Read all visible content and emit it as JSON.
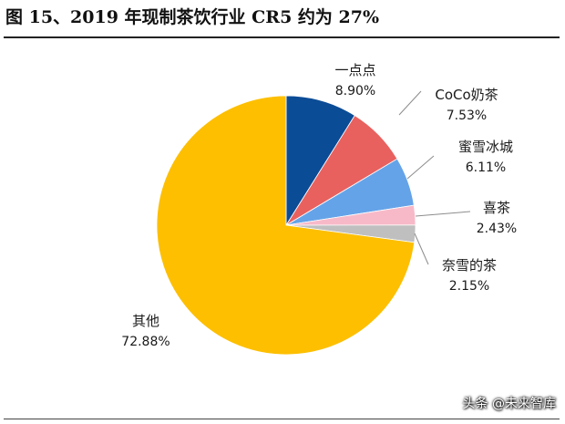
{
  "figure_title": "图 15、2019 年现制茶饮行业 CR5 约为 27%",
  "watermark": "头条 @未来智库",
  "chart_data": {
    "type": "pie",
    "title": "",
    "slices": [
      {
        "label": "一点点",
        "value": 8.9,
        "display": "8.90%",
        "color": "#0b4c96"
      },
      {
        "label": "CoCo奶茶",
        "value": 7.53,
        "display": "7.53%",
        "color": "#e8615f"
      },
      {
        "label": "蜜雪冰城",
        "value": 6.11,
        "display": "6.11%",
        "color": "#65a3e8"
      },
      {
        "label": "喜茶",
        "value": 2.43,
        "display": "2.43%",
        "color": "#f7b9c8"
      },
      {
        "label": "奈雪的茶",
        "value": 2.15,
        "display": "2.15%",
        "color": "#bfbfbf"
      },
      {
        "label": "其他",
        "value": 72.88,
        "display": "72.88%",
        "color": "#fdbf00"
      }
    ],
    "start_angle": "12 o'clock",
    "direction": "clockwise",
    "legend": "none"
  }
}
